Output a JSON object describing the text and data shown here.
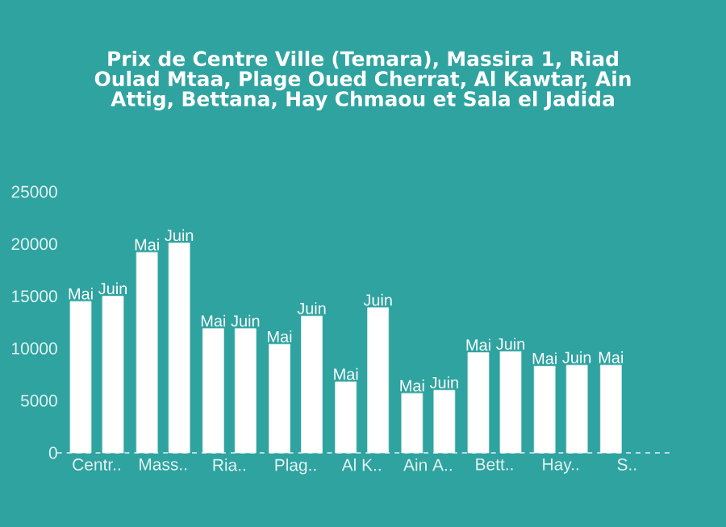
{
  "chart_data": {
    "type": "bar",
    "title": "Prix de Centre Ville (Temara), Massira 1, Riad Oulad Mtaa, Plage Oued Cherrat, Al Kawtar, Ain Attig, Bettana, Hay Chmaou et Sala el Jadida",
    "categories": [
      "Centr..",
      "Mass..",
      "Ria..",
      "Plag..",
      "Al K..",
      "Ain A..",
      "Bett..",
      "Hay..",
      "S.."
    ],
    "series": [
      {
        "name": "Mai",
        "color": "#ffffff",
        "values": [
          14500,
          19200,
          11900,
          10400,
          6800,
          5700,
          9600,
          8300,
          8400
        ]
      },
      {
        "name": "Juin",
        "color": "#ffffff",
        "values": [
          15000,
          20100,
          11900,
          13100,
          13900,
          6000,
          9700,
          8400,
          null
        ]
      }
    ],
    "ylim": [
      0,
      25000
    ],
    "yticks": [
      0,
      5000,
      10000,
      15000,
      20000,
      25000
    ],
    "legend": false
  }
}
